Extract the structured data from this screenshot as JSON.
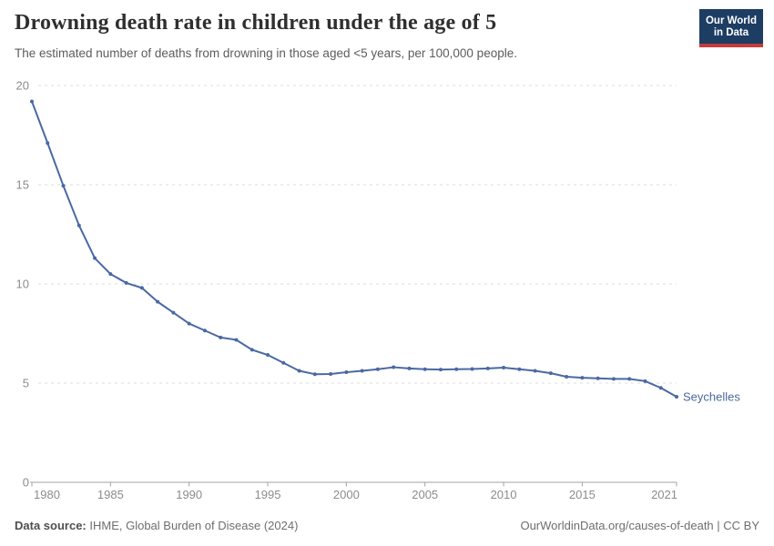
{
  "header": {
    "title": "Drowning death rate in children under the age of 5",
    "subtitle": "The estimated number of deaths from drowning in those aged <5 years, per 100,000 people.",
    "logo": {
      "line1": "Our World",
      "line2": "in Data"
    }
  },
  "chart_data": {
    "type": "line",
    "title": "Drowning death rate in children under the age of 5",
    "xlabel": "",
    "ylabel": "",
    "xlim": [
      1980,
      2021
    ],
    "ylim": [
      0,
      20
    ],
    "x_ticks": [
      1980,
      1985,
      1990,
      1995,
      2000,
      2005,
      2010,
      2015,
      2021
    ],
    "y_ticks": [
      0,
      5,
      10,
      15,
      20
    ],
    "grid": "horizontal-dashed",
    "legend_position": "end-of-line-label",
    "series": [
      {
        "name": "Seychelles",
        "color": "#4a69a2",
        "x": [
          1980,
          1981,
          1982,
          1983,
          1984,
          1985,
          1986,
          1987,
          1988,
          1989,
          1990,
          1991,
          1992,
          1993,
          1994,
          1995,
          1996,
          1997,
          1998,
          1999,
          2000,
          2001,
          2002,
          2003,
          2004,
          2005,
          2006,
          2007,
          2008,
          2009,
          2010,
          2011,
          2012,
          2013,
          2014,
          2015,
          2016,
          2017,
          2018,
          2019,
          2020,
          2021
        ],
        "values": [
          19.2,
          17.1,
          14.95,
          12.95,
          11.3,
          10.5,
          10.05,
          9.8,
          9.1,
          8.55,
          8.0,
          7.65,
          7.3,
          7.18,
          6.68,
          6.42,
          6.02,
          5.62,
          5.45,
          5.46,
          5.55,
          5.62,
          5.7,
          5.8,
          5.74,
          5.7,
          5.68,
          5.7,
          5.71,
          5.74,
          5.78,
          5.7,
          5.62,
          5.5,
          5.32,
          5.27,
          5.24,
          5.21,
          5.21,
          5.1,
          4.76,
          4.31
        ]
      }
    ]
  },
  "footer": {
    "source_label": "Data source:",
    "source_value": " IHME, Global Burden of Disease (2024)",
    "right_text": "OurWorldinData.org/causes-of-death | CC BY"
  },
  "colors": {
    "line": "#4a69a2",
    "series_label": "#4c6a9c",
    "grid": "#dcdcdc",
    "axis": "#a3a3a3",
    "tick_label": "#8c8c8c",
    "logo_bg": "#1d3d63",
    "logo_accent": "#c43b3b"
  }
}
